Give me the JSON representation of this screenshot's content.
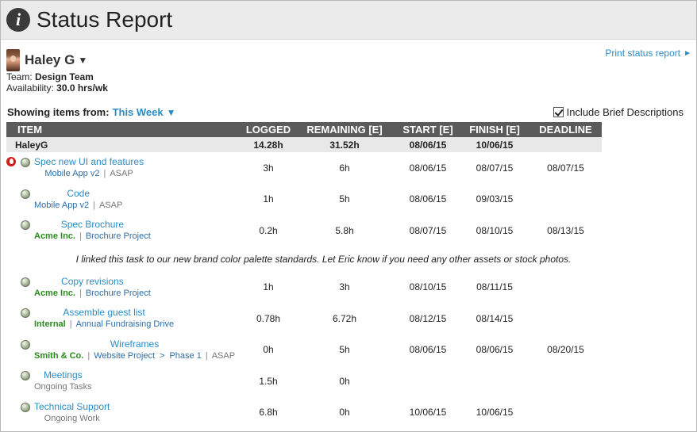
{
  "header": {
    "title": "Status Report",
    "icon": "info-icon"
  },
  "user": {
    "name": "Haley G",
    "team_label": "Team:",
    "team": "Design Team",
    "availability_label": "Availability:",
    "availability": "30.0 hrs/wk"
  },
  "print_link": "Print status report",
  "filter": {
    "label": "Showing items from:",
    "value": "This Week"
  },
  "brief": {
    "label": "Include Brief Descriptions",
    "checked": true
  },
  "columns": [
    "ITEM",
    "LOGGED",
    "REMAINING [E]",
    "START [E]",
    "FINISH [E]",
    "DEADLINE"
  ],
  "group": {
    "name": "HaleyG",
    "logged": "14.28h",
    "remaining": "31.52h",
    "start": "08/06/15",
    "finish": "10/06/15",
    "deadline": ""
  },
  "tasks": [
    {
      "title": "Spec new UI and features",
      "sub": [
        {
          "text": "Mobile App v2",
          "kind": "proj"
        },
        {
          "text": "ASAP",
          "kind": "plain"
        }
      ],
      "logged": "3h",
      "remaining": "6h",
      "start": "08/06/15",
      "finish": "08/07/15",
      "deadline": "08/07/15",
      "late": true,
      "urgent": true
    },
    {
      "title": "Code",
      "sub": [
        {
          "text": "Mobile App v2",
          "kind": "proj"
        },
        {
          "text": "ASAP",
          "kind": "plain"
        }
      ],
      "logged": "1h",
      "remaining": "5h",
      "start": "08/06/15",
      "finish": "09/03/15",
      "deadline": ""
    },
    {
      "title": "Spec Brochure",
      "sub": [
        {
          "text": "Acme Inc.",
          "kind": "client"
        },
        {
          "text": "Brochure Project",
          "kind": "proj"
        }
      ],
      "logged": "0.2h",
      "remaining": "5.8h",
      "start": "08/07/15",
      "finish": "08/10/15",
      "deadline": "08/13/15",
      "description": "I linked this task to our new brand color palette standards. Let Eric know if you need any other assets or stock photos."
    },
    {
      "title": "Copy revisions",
      "sub": [
        {
          "text": "Acme Inc.",
          "kind": "client"
        },
        {
          "text": "Brochure Project",
          "kind": "proj"
        }
      ],
      "logged": "1h",
      "remaining": "3h",
      "start": "08/10/15",
      "finish": "08/11/15",
      "deadline": ""
    },
    {
      "title": "Assemble guest list",
      "sub": [
        {
          "text": "Internal",
          "kind": "client"
        },
        {
          "text": "Annual Fundraising Drive",
          "kind": "proj"
        }
      ],
      "logged": "0.78h",
      "remaining": "6.72h",
      "start": "08/12/15",
      "finish": "08/14/15",
      "deadline": ""
    },
    {
      "title": "Wireframes",
      "sub": [
        {
          "text": "Smith & Co.",
          "kind": "client"
        },
        {
          "text": "Website Project",
          "kind": "proj",
          "next": "Phase 1"
        },
        {
          "text": "ASAP",
          "kind": "plain"
        }
      ],
      "logged": "0h",
      "remaining": "5h",
      "start": "08/06/15",
      "finish": "08/06/15",
      "deadline": "08/20/15"
    },
    {
      "title": "Meetings",
      "sub": [
        {
          "text": "Ongoing Tasks",
          "kind": "plain"
        }
      ],
      "logged": "1.5h",
      "remaining": "0h",
      "start": "",
      "finish": "",
      "deadline": ""
    },
    {
      "title": "Technical Support",
      "sub": [
        {
          "text": "Ongoing Work",
          "kind": "plain"
        }
      ],
      "logged": "6.8h",
      "remaining": "0h",
      "start": "10/06/15",
      "finish": "10/06/15",
      "deadline": ""
    }
  ],
  "colors": {
    "accent": "#2b8cc4",
    "client": "#2b8a1e",
    "late": "#e02424",
    "header_bg": "#5b5b5b"
  }
}
